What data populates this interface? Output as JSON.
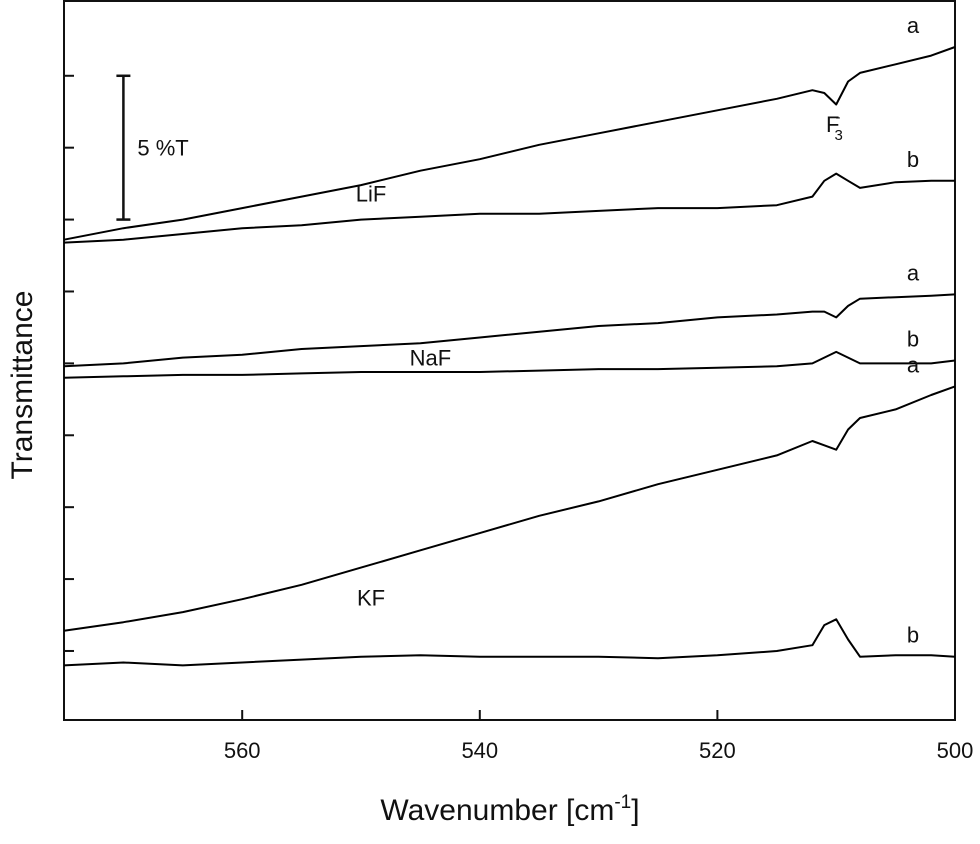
{
  "chart_data": {
    "type": "line",
    "ylabel": "Transmittance",
    "xlabel": [
      "Wavenumber [cm",
      "-1",
      "]"
    ],
    "x": [
      575,
      570,
      565,
      560,
      555,
      550,
      545,
      540,
      535,
      530,
      525,
      520,
      515,
      512,
      511,
      510,
      509,
      508,
      505,
      502,
      500
    ],
    "xlim": [
      575,
      500
    ],
    "xticks": [
      560,
      540,
      520,
      500
    ],
    "ylim": [
      0.1,
      25.1
    ],
    "yticks": [
      2.5,
      5,
      7.5,
      10,
      12.5,
      15,
      17.5,
      20,
      22.5
    ],
    "series": [
      {
        "name": "a",
        "color": "#000000",
        "values": [
          16.8,
          17.2,
          17.5,
          17.9,
          18.3,
          18.7,
          19.2,
          19.6,
          20.1,
          20.5,
          20.9,
          21.3,
          21.7,
          22.0,
          21.9,
          21.5,
          22.3,
          22.6,
          22.9,
          23.2,
          23.5
        ]
      },
      {
        "name": "b",
        "color": "#000000",
        "values": [
          16.7,
          16.8,
          17.0,
          17.2,
          17.3,
          17.5,
          17.6,
          17.7,
          17.7,
          17.8,
          17.9,
          17.9,
          18.0,
          18.3,
          18.85,
          19.1,
          18.85,
          18.6,
          18.8,
          18.85,
          18.85
        ]
      },
      {
        "name": "a",
        "color": "#000000",
        "values": [
          12.4,
          12.5,
          12.7,
          12.8,
          13.0,
          13.1,
          13.2,
          13.4,
          13.6,
          13.8,
          13.9,
          14.1,
          14.2,
          14.3,
          14.3,
          14.1,
          14.5,
          14.75,
          14.8,
          14.85,
          14.9
        ]
      },
      {
        "name": "b",
        "color": "#000000",
        "values": [
          12.0,
          12.05,
          12.1,
          12.1,
          12.15,
          12.2,
          12.2,
          12.2,
          12.25,
          12.3,
          12.3,
          12.35,
          12.4,
          12.5,
          12.7,
          12.9,
          12.7,
          12.5,
          12.5,
          12.5,
          12.6
        ]
      },
      {
        "name": "a",
        "color": "#000000",
        "values": [
          3.2,
          3.5,
          3.85,
          4.3,
          4.8,
          5.4,
          6.0,
          6.6,
          7.2,
          7.7,
          8.3,
          8.8,
          9.3,
          9.8,
          9.65,
          9.5,
          10.2,
          10.6,
          10.9,
          11.4,
          11.7
        ]
      },
      {
        "name": "b",
        "color": "#000000",
        "values": [
          2.0,
          2.1,
          2.0,
          2.1,
          2.2,
          2.3,
          2.35,
          2.3,
          2.3,
          2.3,
          2.25,
          2.35,
          2.5,
          2.7,
          3.4,
          3.6,
          2.9,
          2.3,
          2.35,
          2.35,
          2.3
        ]
      }
    ],
    "groups": [
      "LiF",
      "NaF",
      "KF"
    ],
    "peak_label": {
      "text": "F",
      "sub": "3",
      "sup": "-"
    },
    "scale_bar": {
      "label": "5 %T",
      "x": 570,
      "from": 17.5,
      "to": 22.5
    }
  }
}
